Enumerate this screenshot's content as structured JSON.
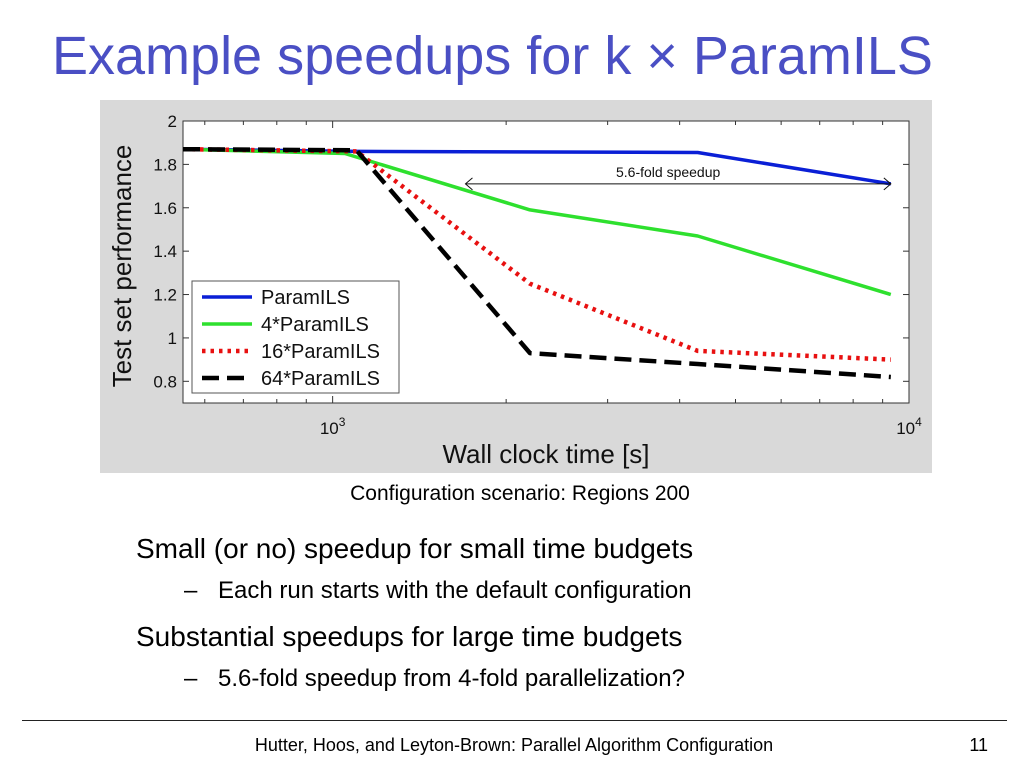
{
  "slide": {
    "title": "Example speedups for k × ParamILS",
    "caption": "Configuration scenario: Regions 200",
    "bullets": [
      {
        "text": "Small (or no) speedup for small time budgets",
        "sub": "Each run starts with the default configuration"
      },
      {
        "text": "Substantial speedups for large time budgets",
        "sub": "5.6-fold speedup from 4-fold parallelization?"
      }
    ],
    "sub_marker": "–",
    "footer": "Hutter, Hoos, and Leyton-Brown: Parallel Algorithm Configuration",
    "page_number": "11"
  },
  "chart_data": {
    "type": "line",
    "xlabel": "Wall clock time [s]",
    "ylabel": "Test set performance",
    "x_scale": "log",
    "xlim": [
      550,
      10000
    ],
    "ylim": [
      0.7,
      2.0
    ],
    "x_ticks": [
      {
        "value": 1000,
        "base": "10",
        "exp": "3"
      },
      {
        "value": 10000,
        "base": "10",
        "exp": "4"
      }
    ],
    "y_ticks": [
      0.8,
      1,
      1.2,
      1.4,
      1.6,
      1.8,
      2
    ],
    "y_tick_labels": [
      "0.8",
      "1",
      "1.2",
      "1.4",
      "1.6",
      "1.8",
      "2"
    ],
    "grid": false,
    "legend_position": "bottom-left",
    "series": [
      {
        "name": "ParamILS",
        "color": "#0a1fd6",
        "dash": "solid",
        "x": [
          550,
          1100,
          4300,
          9300
        ],
        "y": [
          1.87,
          1.86,
          1.855,
          1.71
        ]
      },
      {
        "name": "4*ParamILS",
        "color": "#2ee02e",
        "dash": "solid",
        "x": [
          550,
          1050,
          2200,
          4300,
          9300
        ],
        "y": [
          1.87,
          1.85,
          1.59,
          1.47,
          1.2
        ]
      },
      {
        "name": "16*ParamILS",
        "color": "#e81010",
        "dash": "dotted",
        "x": [
          550,
          1100,
          2200,
          4300,
          9300
        ],
        "y": [
          1.87,
          1.86,
          1.25,
          0.94,
          0.9
        ]
      },
      {
        "name": "64*ParamILS",
        "color": "#000000",
        "dash": "dashed",
        "x": [
          550,
          1100,
          2200,
          4300,
          9300
        ],
        "y": [
          1.87,
          1.865,
          0.93,
          0.88,
          0.82
        ]
      }
    ],
    "annotation": {
      "text": "5.6-fold speedup",
      "x_from": 1700,
      "x_to": 9300,
      "y": 1.71
    }
  }
}
